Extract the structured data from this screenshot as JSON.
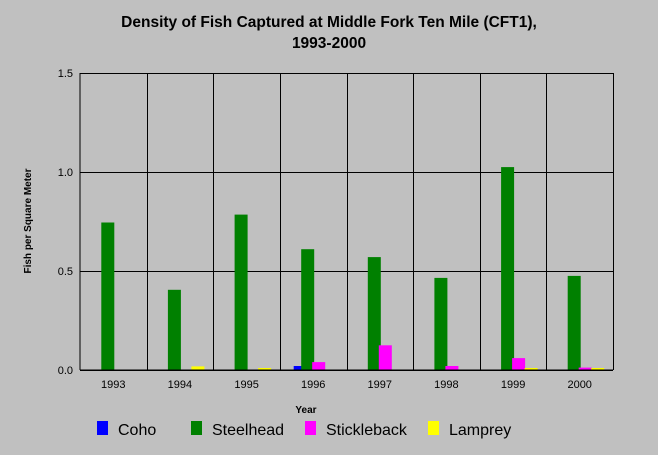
{
  "chart_data": {
    "type": "bar",
    "title": [
      "Density of Fish Captured at Middle Fork Ten Mile (CFT1),",
      "1993-2000"
    ],
    "xlabel": "Year",
    "ylabel": "Fish per Square Meter",
    "ylim": [
      0,
      1.5
    ],
    "yticks": [
      "0.0",
      "0.5",
      "1.0",
      "1.5"
    ],
    "grid": true,
    "legend_position": "bottom",
    "categories": [
      "1993",
      "1994",
      "1995",
      "1996",
      "1997",
      "1998",
      "1999",
      "2000"
    ],
    "series": [
      {
        "name": "Coho",
        "color": "#0000ff",
        "values": [
          0,
          0,
          0,
          0.02,
          0,
          0,
          0,
          0
        ]
      },
      {
        "name": "Steelhead",
        "color": "#008000",
        "values": [
          0.745,
          0.405,
          0.785,
          0.61,
          0.57,
          0.465,
          1.025,
          0.475
        ]
      },
      {
        "name": "Stickleback",
        "color": "#ff00ff",
        "values": [
          0,
          0,
          0,
          0.04,
          0.125,
          0.02,
          0.06,
          0.012
        ]
      },
      {
        "name": "Lamprey",
        "color": "#ffff00",
        "values": [
          0,
          0.018,
          0.01,
          0,
          0,
          0,
          0.005,
          0.005
        ]
      }
    ]
  }
}
